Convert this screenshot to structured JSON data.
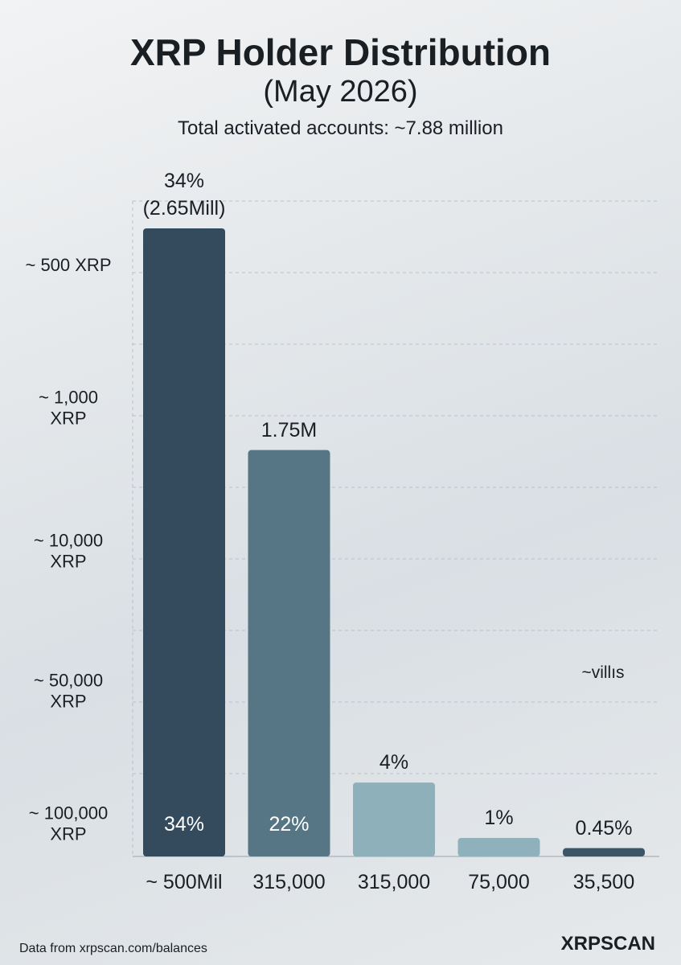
{
  "chart_data": {
    "type": "bar",
    "title": "XRP Holder Distribution",
    "subtitle": "(May 2026)",
    "note": "Total activated accounts: ~7.88 million",
    "categories": [
      "~ 500Mil",
      "315,000",
      "315,000",
      "75,000",
      "35,500"
    ],
    "values": [
      34,
      22,
      4,
      1,
      0.45
    ],
    "value_labels": [
      "34%",
      "22%",
      "4%",
      "1%",
      "0.45%"
    ],
    "count_labels": [
      "(2.65Mill)",
      "1.75M",
      null,
      null,
      null
    ],
    "colors": [
      "#344b5e",
      "#567686",
      "#8db0ba",
      "#8fb1bb",
      "#3c5567"
    ],
    "y_labels": [
      "~ 500 XRP",
      "~ 1,000\nXRP",
      "~ 10,000\nXRP",
      "~ 50,000\nXRP",
      "~ 100,000\nXRP"
    ],
    "annotation": "~villıs",
    "source": "Data from xrpscan.com/balances",
    "brand": "XRPSCAN",
    "grid": true
  }
}
